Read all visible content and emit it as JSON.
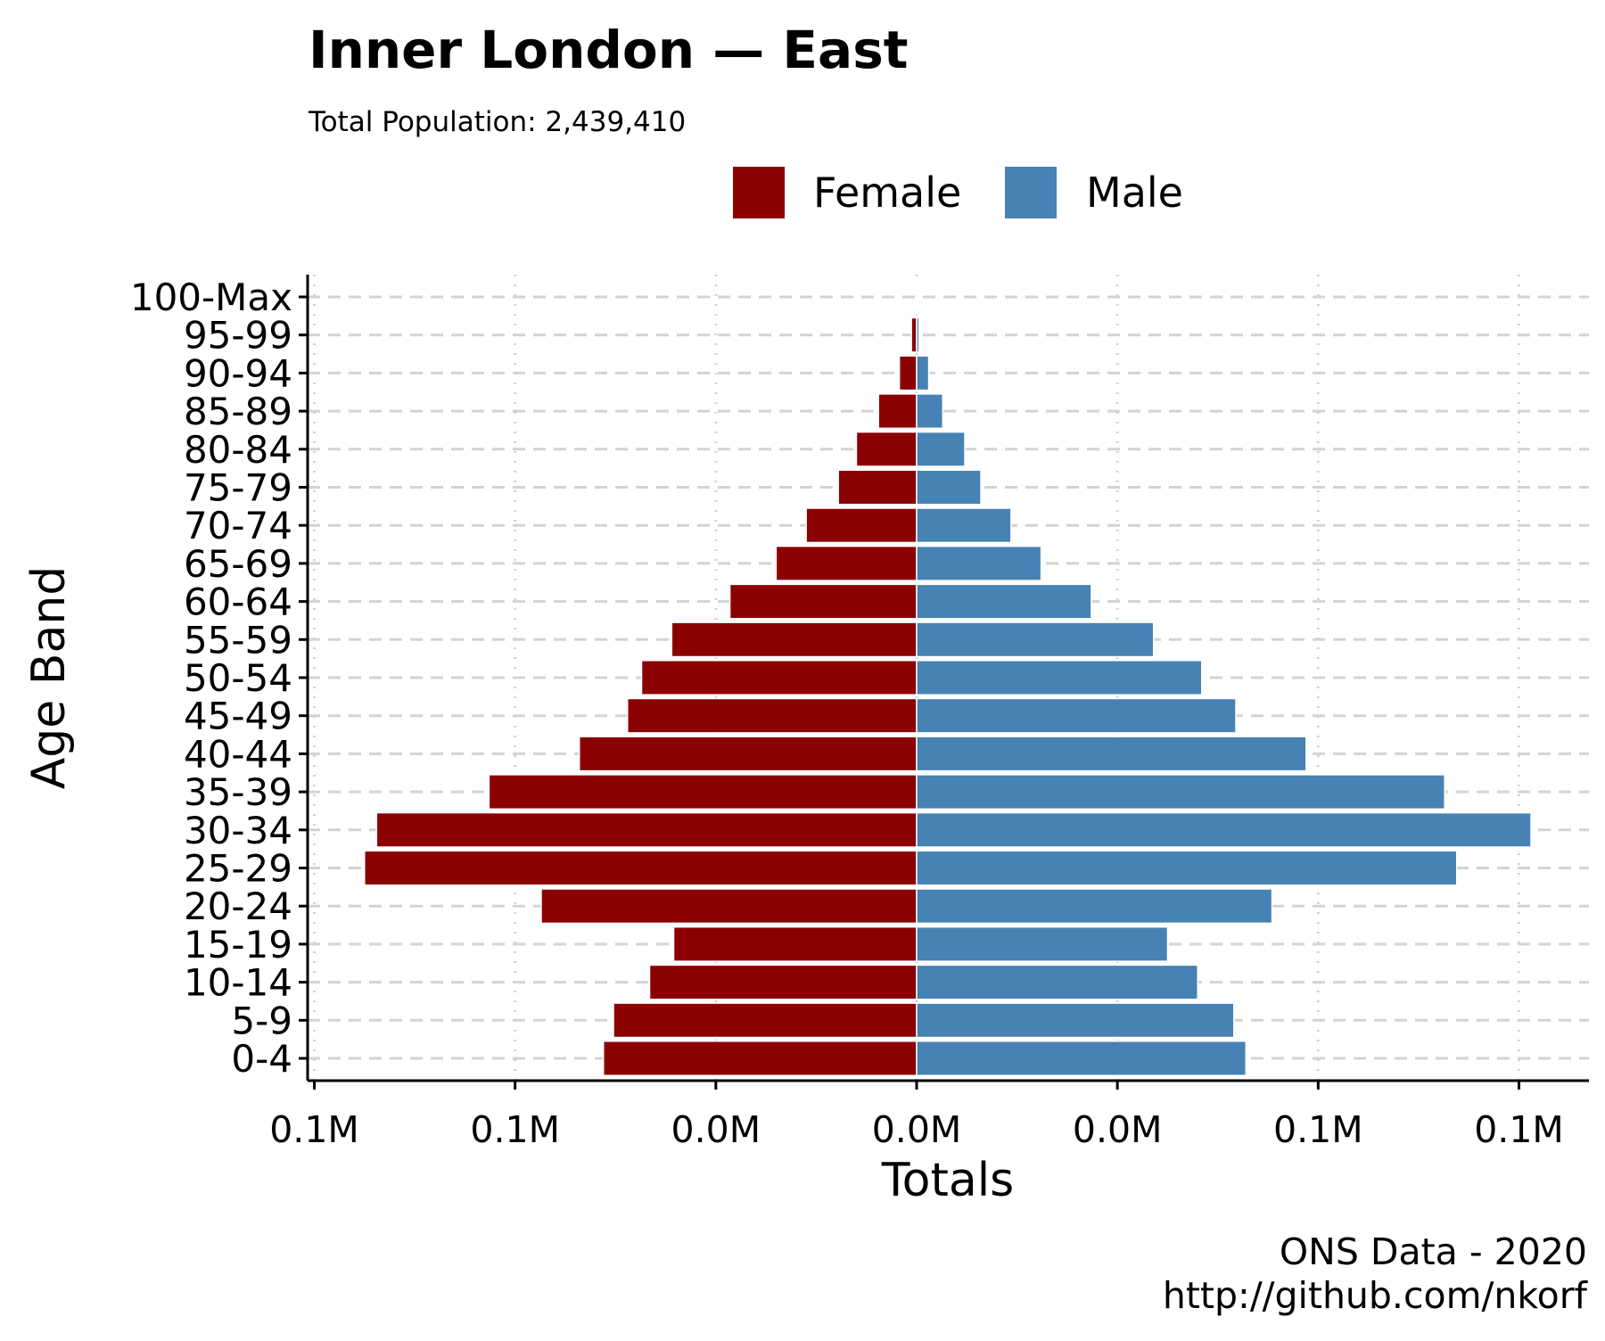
{
  "chart_data": {
    "type": "bar",
    "orientation": "horizontal",
    "layout": "population-pyramid",
    "title": "Inner London — East",
    "subtitle": "Total Population:  2,439,410",
    "xlabel": "Totals",
    "ylabel": "Age Band",
    "caption": [
      "ONS Data - 2020",
      "http://github.com/nkorf"
    ],
    "legend_position": "top",
    "grid": {
      "horizontal": "dashed",
      "vertical": "dotted"
    },
    "xlim": [
      -150000,
      165000
    ],
    "x_ticks": [
      {
        "value": -150000,
        "label": "0.1M"
      },
      {
        "value": -100000,
        "label": "0.1M"
      },
      {
        "value": -50000,
        "label": "0.0M"
      },
      {
        "value": 0,
        "label": "0.0M"
      },
      {
        "value": 50000,
        "label": "0.0M"
      },
      {
        "value": 100000,
        "label": "0.1M"
      },
      {
        "value": 150000,
        "label": "0.1M"
      }
    ],
    "categories": [
      "0-4",
      "5-9",
      "10-14",
      "15-19",
      "20-24",
      "25-29",
      "30-34",
      "35-39",
      "40-44",
      "45-49",
      "50-54",
      "55-59",
      "60-64",
      "65-69",
      "70-74",
      "75-79",
      "80-84",
      "85-89",
      "90-94",
      "95-99",
      "100-Max"
    ],
    "series": [
      {
        "name": "Female",
        "color": "#8b0000",
        "values": [
          78000,
          75500,
          66500,
          60500,
          93500,
          137500,
          134500,
          106500,
          84000,
          72000,
          68500,
          61000,
          46500,
          35000,
          27500,
          19500,
          15000,
          9500,
          4300,
          1300,
          150
        ]
      },
      {
        "name": "Male",
        "color": "#4682b4",
        "values": [
          82000,
          79000,
          70000,
          62500,
          88500,
          134500,
          153000,
          131500,
          97000,
          79500,
          71000,
          59000,
          43500,
          31000,
          23500,
          16000,
          12000,
          6500,
          3000,
          600,
          100
        ]
      }
    ]
  }
}
